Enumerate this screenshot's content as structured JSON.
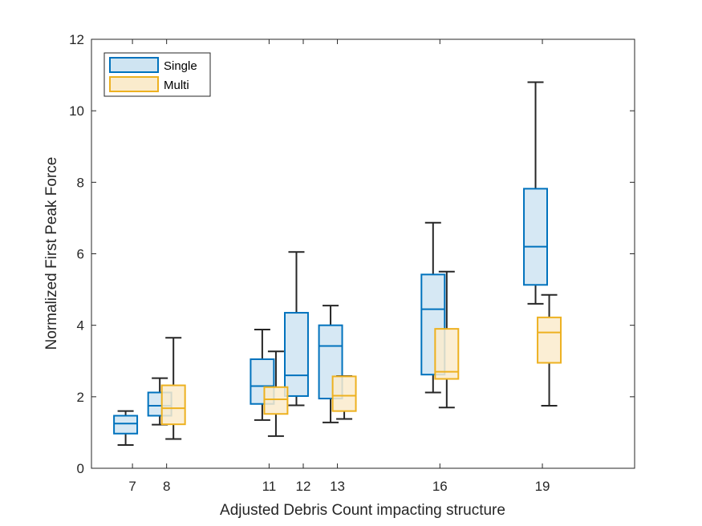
{
  "chart_data": {
    "type": "box",
    "xlabel": "Adjusted Debris Count impacting structure",
    "ylabel": "Normalized First Peak Force",
    "ylim": [
      0,
      12
    ],
    "yticks": [
      0,
      2,
      4,
      6,
      8,
      10,
      12
    ],
    "xlim": [
      5.8,
      21.7
    ],
    "xticks": [
      7,
      8,
      11,
      12,
      13,
      16,
      19
    ],
    "xtick_labels": [
      "7",
      "8",
      "11",
      "12",
      "13",
      "16",
      "19"
    ],
    "grid": false,
    "legend": {
      "position": "top-left",
      "entries": [
        "Single",
        "Multi"
      ]
    },
    "series": [
      {
        "name": "Single",
        "color": "#0072BD",
        "fill": "#CFE4F2",
        "boxes": [
          {
            "x": 6.8,
            "whisker_low": 0.65,
            "q1": 0.97,
            "median": 1.25,
            "q3": 1.47,
            "whisker_high": 1.6
          },
          {
            "x": 7.8,
            "whisker_low": 1.22,
            "q1": 1.47,
            "median": 1.75,
            "q3": 2.12,
            "whisker_high": 2.52
          },
          {
            "x": 10.8,
            "whisker_low": 1.35,
            "q1": 1.8,
            "median": 2.3,
            "q3": 3.05,
            "whisker_high": 3.88
          },
          {
            "x": 11.8,
            "whisker_low": 1.76,
            "q1": 2.02,
            "median": 2.6,
            "q3": 4.35,
            "whisker_high": 6.05
          },
          {
            "x": 12.8,
            "whisker_low": 1.28,
            "q1": 1.95,
            "median": 3.42,
            "q3": 4.0,
            "whisker_high": 4.55
          },
          {
            "x": 15.8,
            "whisker_low": 2.12,
            "q1": 2.62,
            "median": 4.45,
            "q3": 5.42,
            "whisker_high": 6.87
          },
          {
            "x": 18.8,
            "whisker_low": 4.6,
            "q1": 5.13,
            "median": 6.2,
            "q3": 7.82,
            "whisker_high": 10.8
          }
        ]
      },
      {
        "name": "Multi",
        "color": "#EDB120",
        "fill": "#FAEBCC",
        "boxes": [
          {
            "x": 8.2,
            "whisker_low": 0.82,
            "q1": 1.23,
            "median": 1.68,
            "q3": 2.32,
            "whisker_high": 3.65
          },
          {
            "x": 11.2,
            "whisker_low": 0.9,
            "q1": 1.52,
            "median": 1.93,
            "q3": 2.27,
            "whisker_high": 3.27
          },
          {
            "x": 13.2,
            "whisker_low": 1.38,
            "q1": 1.6,
            "median": 2.03,
            "q3": 2.57,
            "whisker_high": 2.58
          },
          {
            "x": 16.2,
            "whisker_low": 1.7,
            "q1": 2.5,
            "median": 2.7,
            "q3": 3.9,
            "whisker_high": 5.5
          },
          {
            "x": 19.2,
            "whisker_low": 1.75,
            "q1": 2.95,
            "median": 3.8,
            "q3": 4.22,
            "whisker_high": 4.85
          }
        ]
      }
    ]
  }
}
